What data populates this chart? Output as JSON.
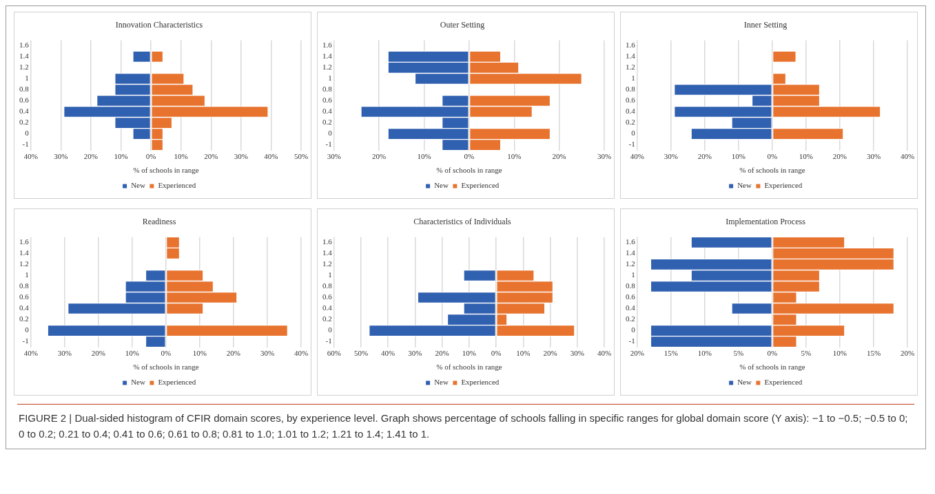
{
  "chart_data": [
    {
      "type": "bar",
      "orientation": "horizontal",
      "stacked": true,
      "title": "Innovation Characteristics",
      "xlabel": "% of schools in range",
      "categories": [
        "1.6",
        "1.4",
        "1.2",
        "1",
        "0.8",
        "0.6",
        "0.4",
        "0.2",
        "0",
        "-1"
      ],
      "series": [
        {
          "name": "New",
          "color": "#3060b0",
          "values": [
            null,
            -6,
            null,
            -12,
            -12,
            -18,
            -29,
            -12,
            -6,
            null
          ]
        },
        {
          "name": "Experienced",
          "color": "#e8732f",
          "values": [
            null,
            4,
            null,
            11,
            14,
            18,
            39,
            7,
            4,
            4
          ]
        }
      ],
      "xlim": [
        -40,
        50
      ],
      "xticks": [
        {
          "value": -40,
          "label": "40%"
        },
        {
          "value": -30,
          "label": "30%"
        },
        {
          "value": -20,
          "label": "20%"
        },
        {
          "value": -10,
          "label": "10%"
        },
        {
          "value": 0,
          "label": "0%"
        },
        {
          "value": 10,
          "label": "10%"
        },
        {
          "value": 20,
          "label": "20%"
        },
        {
          "value": 30,
          "label": "30%"
        },
        {
          "value": 40,
          "label": "40%"
        },
        {
          "value": 50,
          "label": "50%"
        }
      ],
      "grid": "x",
      "legend": "bottom"
    },
    {
      "type": "bar",
      "orientation": "horizontal",
      "stacked": true,
      "title": "Outer Setting",
      "xlabel": "% of schools in range",
      "categories": [
        "1.6",
        "1.4",
        "1.2",
        "1",
        "0.8",
        "0.6",
        "0.4",
        "0.2",
        "0",
        "-1"
      ],
      "series": [
        {
          "name": "New",
          "color": "#3060b0",
          "values": [
            null,
            -18,
            -18,
            -12,
            null,
            -6,
            -24,
            -6,
            -18,
            -6
          ]
        },
        {
          "name": "Experienced",
          "color": "#e8732f",
          "values": [
            null,
            7,
            11,
            25,
            null,
            18,
            14,
            null,
            18,
            7
          ]
        }
      ],
      "xlim": [
        -30,
        30
      ],
      "xticks": [
        {
          "value": -30,
          "label": "30%"
        },
        {
          "value": -20,
          "label": "20%"
        },
        {
          "value": -10,
          "label": "10%"
        },
        {
          "value": 0,
          "label": "0%"
        },
        {
          "value": 10,
          "label": "10%"
        },
        {
          "value": 20,
          "label": "20%"
        },
        {
          "value": 30,
          "label": "30%"
        }
      ],
      "grid": "x",
      "legend": "bottom"
    },
    {
      "type": "bar",
      "orientation": "horizontal",
      "stacked": true,
      "title": "Inner Setting",
      "xlabel": "% of schools in range",
      "categories": [
        "1.6",
        "1.4",
        "1.2",
        "1",
        "0.8",
        "0.6",
        "0.4",
        "0.2",
        "0",
        "-1"
      ],
      "series": [
        {
          "name": "New",
          "color": "#3060b0",
          "values": [
            null,
            null,
            null,
            null,
            -29,
            -6,
            -29,
            -12,
            -24,
            null
          ]
        },
        {
          "name": "Experienced",
          "color": "#e8732f",
          "values": [
            null,
            7,
            null,
            4,
            14,
            14,
            32,
            null,
            21,
            null
          ]
        }
      ],
      "xlim": [
        -40,
        40
      ],
      "xticks": [
        {
          "value": -40,
          "label": "40%"
        },
        {
          "value": -30,
          "label": "30%"
        },
        {
          "value": -20,
          "label": "20%"
        },
        {
          "value": -10,
          "label": "10%"
        },
        {
          "value": 0,
          "label": "0%"
        },
        {
          "value": 10,
          "label": "10%"
        },
        {
          "value": 20,
          "label": "20%"
        },
        {
          "value": 30,
          "label": "30%"
        },
        {
          "value": 40,
          "label": "40%"
        }
      ],
      "grid": "x",
      "legend": "bottom"
    },
    {
      "type": "bar",
      "orientation": "horizontal",
      "stacked": true,
      "title": "Readiness",
      "xlabel": "% of schools in range",
      "categories": [
        "1.6",
        "1.4",
        "1.2",
        "1",
        "0.8",
        "0.6",
        "0.4",
        "0.2",
        "0",
        "-1"
      ],
      "series": [
        {
          "name": "New",
          "color": "#3060b0",
          "values": [
            null,
            null,
            null,
            -6,
            -12,
            -12,
            -29,
            null,
            -35,
            -6
          ]
        },
        {
          "name": "Experienced",
          "color": "#e8732f",
          "values": [
            4,
            4,
            null,
            11,
            14,
            21,
            11,
            null,
            36,
            null
          ]
        }
      ],
      "xlim": [
        -40,
        40
      ],
      "xticks": [
        {
          "value": -40,
          "label": "40%"
        },
        {
          "value": -30,
          "label": "30%"
        },
        {
          "value": -20,
          "label": "20%"
        },
        {
          "value": -10,
          "label": "10%"
        },
        {
          "value": 0,
          "label": "0%"
        },
        {
          "value": 10,
          "label": "10%"
        },
        {
          "value": 20,
          "label": "20%"
        },
        {
          "value": 30,
          "label": "30%"
        },
        {
          "value": 40,
          "label": "40%"
        }
      ],
      "grid": "x",
      "legend": "bottom"
    },
    {
      "type": "bar",
      "orientation": "horizontal",
      "stacked": true,
      "title": "Characteristics of Individuals",
      "xlabel": "% of schools in range",
      "categories": [
        "1.6",
        "1.4",
        "1.2",
        "1",
        "0.8",
        "0.6",
        "0.4",
        "0.2",
        "0",
        "-1"
      ],
      "series": [
        {
          "name": "New",
          "color": "#3060b0",
          "values": [
            null,
            null,
            null,
            -12,
            null,
            -29,
            -12,
            -18,
            -47,
            null
          ]
        },
        {
          "name": "Experienced",
          "color": "#e8732f",
          "values": [
            null,
            null,
            null,
            14,
            21,
            21,
            18,
            4,
            29,
            null
          ]
        }
      ],
      "xlim": [
        -60,
        40
      ],
      "xticks": [
        {
          "value": -60,
          "label": "60%"
        },
        {
          "value": -50,
          "label": "50%"
        },
        {
          "value": -40,
          "label": "40%"
        },
        {
          "value": -30,
          "label": "30%"
        },
        {
          "value": -20,
          "label": "20%"
        },
        {
          "value": -10,
          "label": "10%"
        },
        {
          "value": 0,
          "label": "0%"
        },
        {
          "value": 10,
          "label": "10%"
        },
        {
          "value": 20,
          "label": "20%"
        },
        {
          "value": 30,
          "label": "30%"
        },
        {
          "value": 40,
          "label": "40%"
        }
      ],
      "grid": "x",
      "legend": "bottom"
    },
    {
      "type": "bar",
      "orientation": "horizontal",
      "stacked": true,
      "title": "Implementation Process",
      "xlabel": "% of schools in range",
      "categories": [
        "1.6",
        "1.4",
        "1.2",
        "1",
        "0.8",
        "0.6",
        "0.4",
        "0.2",
        "0",
        "-1"
      ],
      "series": [
        {
          "name": "New",
          "color": "#3060b0",
          "values": [
            -12,
            null,
            -18,
            -12,
            -18,
            null,
            -6,
            null,
            -18,
            -18
          ]
        },
        {
          "name": "Experienced",
          "color": "#e8732f",
          "values": [
            10.7,
            18,
            18,
            7,
            7,
            3.6,
            18,
            3.6,
            10.7,
            3.6
          ]
        }
      ],
      "xlim": [
        -20,
        20
      ],
      "xticks": [
        {
          "value": -20,
          "label": "20%"
        },
        {
          "value": -15,
          "label": "15%"
        },
        {
          "value": -10,
          "label": "10%"
        },
        {
          "value": -5,
          "label": "5%"
        },
        {
          "value": 0,
          "label": "0%"
        },
        {
          "value": 5,
          "label": "5%"
        },
        {
          "value": 10,
          "label": "10%"
        },
        {
          "value": 15,
          "label": "15%"
        },
        {
          "value": 20,
          "label": "20%"
        }
      ],
      "grid": "x",
      "legend": "bottom",
      "annotations": [
        "FIGURE 2 | Dual-sided histogram of CFIR domain scores, by experience level. Graph shows percentage of schools falling in specific ranges for global domain score (Y axis): −1 to −0.5; −0.5 to 0; 0 to 0.2; 0.21 to 0.4; 0.41 to 0.6; 0.61 to 0.8; 0.81 to 1.0; 1.01 to 1.2; 1.21 to 1.4; 1.41 to 1."
      ]
    }
  ]
}
